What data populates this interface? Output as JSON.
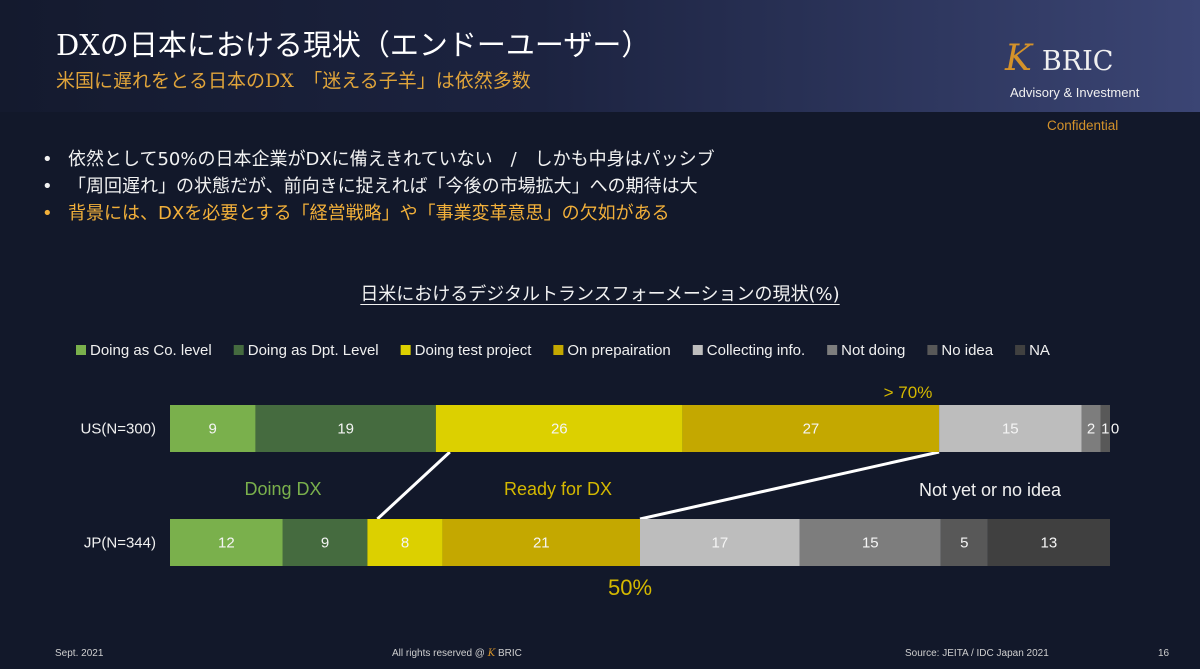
{
  "header": {
    "title": "DXの日本における現状（エンドーユーザー）",
    "subtitle": "米国に遅れをとる日本のDX　「迷える子羊」は依然多数",
    "logo_mark": "K",
    "logo_name": "BRIC",
    "logo_tagline": "Advisory & Investment",
    "confidential": "Confidential"
  },
  "bullets": [
    "依然として50%の日本企業がDXに備えきれていない　/　しかも中身はパッシブ",
    "「周回遅れ」の状態だが、前向きに捉えれば「今後の市場拡大」への期待は大",
    "背景には、DXを必要とする「経営戦略」や「事業変革意思」の欠如がある"
  ],
  "chart_data": {
    "type": "bar",
    "orientation": "horizontal",
    "stacked": true,
    "title": "日米におけるデジタルトランスフォーメーションの現状(%)",
    "categories": [
      "US(N=300)",
      "JP(N=344)"
    ],
    "series": [
      {
        "name": "Doing as Co. level",
        "values": [
          9,
          12
        ],
        "color": "#7ab04c"
      },
      {
        "name": "Doing as Dpt. Level",
        "values": [
          19,
          9
        ],
        "color": "#456b3f"
      },
      {
        "name": "Doing test project",
        "values": [
          26,
          8
        ],
        "color": "#dcd000"
      },
      {
        "name": "On prepairation",
        "values": [
          27,
          21
        ],
        "color": "#c4a800"
      },
      {
        "name": "Collecting info.",
        "values": [
          15,
          17
        ],
        "color": "#bdbdbd"
      },
      {
        "name": "Not doing",
        "values": [
          2,
          15
        ],
        "color": "#7d7d7d"
      },
      {
        "name": "No idea",
        "values": [
          1,
          5
        ],
        "color": "#585858"
      },
      {
        "name": "NA",
        "values": [
          0,
          13
        ],
        "color": "#404040"
      }
    ],
    "legend_position": "top",
    "annotations": {
      "us_threshold": "> 70%",
      "jp_threshold": "50%",
      "group_doing": "Doing DX",
      "group_ready": "Ready for DX",
      "group_not": "Not yet or no idea"
    },
    "annotation_colors": {
      "us_threshold": "#d4b800",
      "jp_threshold": "#d4b800",
      "group_doing": "#7ab04c",
      "group_ready": "#d4b800",
      "group_not": "#f0f0f0"
    }
  },
  "footer": {
    "date": "Sept. 2021",
    "rights_prefix": "All rights reserved @",
    "rights_mark": "K",
    "rights_name": "BRIC",
    "source": "Source: JEITA / IDC Japan 2021",
    "page": "16"
  }
}
